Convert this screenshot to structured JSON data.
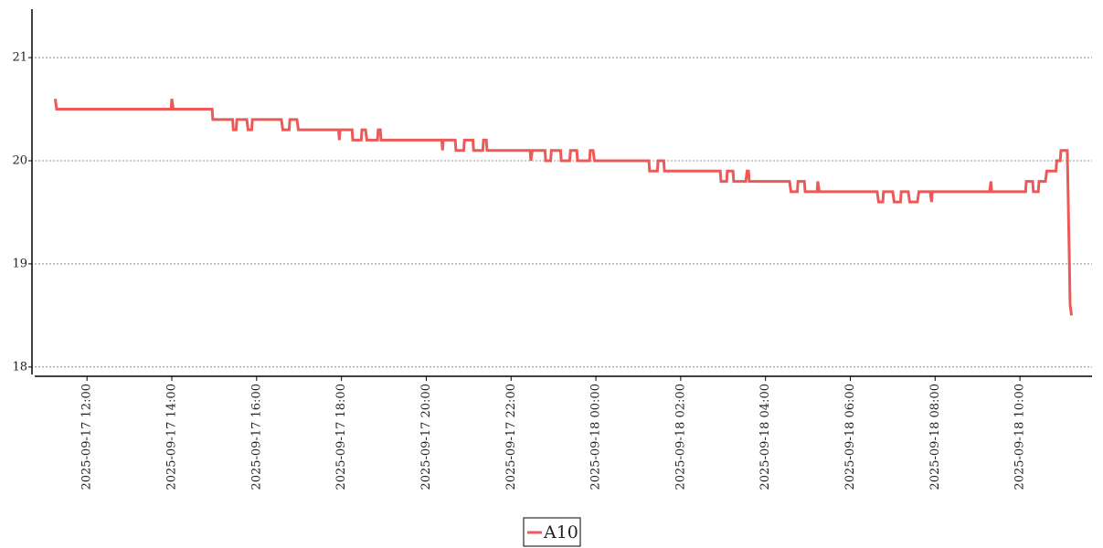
{
  "chart_data": {
    "type": "line",
    "x": [
      "2025-09-17 11:15",
      "2025-09-17 11:17",
      "2025-09-17 13:59",
      "2025-09-17 14:00",
      "2025-09-17 14:02",
      "2025-09-17 14:57",
      "2025-09-17 14:58",
      "2025-09-17 15:26",
      "2025-09-17 15:27",
      "2025-09-17 15:31",
      "2025-09-17 15:32",
      "2025-09-17 15:46",
      "2025-09-17 15:48",
      "2025-09-17 15:53",
      "2025-09-17 15:54",
      "2025-09-17 16:35",
      "2025-09-17 16:37",
      "2025-09-17 16:46",
      "2025-09-17 16:47",
      "2025-09-17 16:57",
      "2025-09-17 16:59",
      "2025-09-17 17:56",
      "2025-09-17 17:57",
      "2025-09-17 17:58",
      "2025-09-17 18:15",
      "2025-09-17 18:16",
      "2025-09-17 18:28",
      "2025-09-17 18:29",
      "2025-09-17 18:34",
      "2025-09-17 18:36",
      "2025-09-17 18:51",
      "2025-09-17 18:52",
      "2025-09-17 18:55",
      "2025-09-17 18:56",
      "2025-09-17 20:22",
      "2025-09-17 20:23",
      "2025-09-17 20:24",
      "2025-09-17 20:41",
      "2025-09-17 20:42",
      "2025-09-17 20:53",
      "2025-09-17 20:54",
      "2025-09-17 21:06",
      "2025-09-17 21:07",
      "2025-09-17 21:20",
      "2025-09-17 21:21",
      "2025-09-17 21:25",
      "2025-09-17 21:26",
      "2025-09-17 22:27",
      "2025-09-17 22:28",
      "2025-09-17 22:30",
      "2025-09-17 22:48",
      "2025-09-17 22:49",
      "2025-09-17 22:56",
      "2025-09-17 22:57",
      "2025-09-17 23:10",
      "2025-09-17 23:11",
      "2025-09-17 23:23",
      "2025-09-17 23:24",
      "2025-09-17 23:33",
      "2025-09-17 23:34",
      "2025-09-17 23:51",
      "2025-09-17 23:52",
      "2025-09-17 23:56",
      "2025-09-17 23:58",
      "2025-09-18 01:15",
      "2025-09-18 01:16",
      "2025-09-18 01:27",
      "2025-09-18 01:28",
      "2025-09-18 01:36",
      "2025-09-18 01:37",
      "2025-09-18 02:56",
      "2025-09-18 02:57",
      "2025-09-18 03:05",
      "2025-09-18 03:06",
      "2025-09-18 03:14",
      "2025-09-18 03:15",
      "2025-09-18 03:32",
      "2025-09-18 03:34",
      "2025-09-18 03:36",
      "2025-09-18 03:37",
      "2025-09-18 04:34",
      "2025-09-18 04:36",
      "2025-09-18 04:45",
      "2025-09-18 04:46",
      "2025-09-18 04:55",
      "2025-09-18 04:56",
      "2025-09-18 05:13",
      "2025-09-18 05:14",
      "2025-09-18 05:16",
      "2025-09-18 06:38",
      "2025-09-18 06:40",
      "2025-09-18 06:46",
      "2025-09-18 06:47",
      "2025-09-18 07:00",
      "2025-09-18 07:02",
      "2025-09-18 07:11",
      "2025-09-18 07:12",
      "2025-09-18 07:22",
      "2025-09-18 07:24",
      "2025-09-18 07:35",
      "2025-09-18 07:37",
      "2025-09-18 07:53",
      "2025-09-18 07:55",
      "2025-09-18 07:56",
      "2025-09-18 09:17",
      "2025-09-18 09:19",
      "2025-09-18 09:20",
      "2025-09-18 10:08",
      "2025-09-18 10:09",
      "2025-09-18 10:18",
      "2025-09-18 10:19",
      "2025-09-18 10:26",
      "2025-09-18 10:27",
      "2025-09-18 10:36",
      "2025-09-18 10:38",
      "2025-09-18 10:51",
      "2025-09-18 10:52",
      "2025-09-18 10:57",
      "2025-09-18 10:58",
      "2025-09-18 11:07",
      "2025-09-18 11:10",
      "2025-09-18 11:11",
      "2025-09-18 11:13"
    ],
    "series": [
      {
        "name": "A10",
        "color": "#eb5a57",
        "values": [
          20.6,
          20.5,
          20.5,
          20.6,
          20.5,
          20.5,
          20.4,
          20.4,
          20.3,
          20.3,
          20.4,
          20.4,
          20.3,
          20.3,
          20.4,
          20.4,
          20.3,
          20.3,
          20.4,
          20.4,
          20.3,
          20.3,
          20.2,
          20.3,
          20.3,
          20.2,
          20.2,
          20.3,
          20.3,
          20.2,
          20.2,
          20.3,
          20.3,
          20.2,
          20.2,
          20.1,
          20.2,
          20.2,
          20.1,
          20.1,
          20.2,
          20.2,
          20.1,
          20.1,
          20.2,
          20.2,
          20.1,
          20.1,
          20.0,
          20.1,
          20.1,
          20.0,
          20.0,
          20.1,
          20.1,
          20.0,
          20.0,
          20.1,
          20.1,
          20.0,
          20.0,
          20.1,
          20.1,
          20.0,
          20.0,
          19.9,
          19.9,
          20.0,
          20.0,
          19.9,
          19.9,
          19.8,
          19.8,
          19.9,
          19.9,
          19.8,
          19.8,
          19.9,
          19.9,
          19.8,
          19.8,
          19.7,
          19.7,
          19.8,
          19.8,
          19.7,
          19.7,
          19.8,
          19.7,
          19.7,
          19.6,
          19.6,
          19.7,
          19.7,
          19.6,
          19.6,
          19.7,
          19.7,
          19.6,
          19.6,
          19.7,
          19.7,
          19.6,
          19.7,
          19.7,
          19.8,
          19.7,
          19.7,
          19.8,
          19.8,
          19.7,
          19.7,
          19.8,
          19.8,
          19.9,
          19.9,
          20.0,
          20.0,
          20.1,
          20.1,
          19.0,
          18.6,
          18.5
        ]
      }
    ],
    "xlim": [
      "2025-09-17 10:46",
      "2025-09-18 11:42"
    ],
    "xticks": [
      "2025-09-17 12:00",
      "2025-09-17 14:00",
      "2025-09-17 16:00",
      "2025-09-17 18:00",
      "2025-09-17 20:00",
      "2025-09-17 22:00",
      "2025-09-18 00:00",
      "2025-09-18 02:00",
      "2025-09-18 04:00",
      "2025-09-18 06:00",
      "2025-09-18 08:00",
      "2025-09-18 10:00"
    ],
    "ylim": [
      17.91,
      21.47
    ],
    "yticks": [
      18,
      19,
      20,
      21
    ],
    "grid": true,
    "legend": "bottom"
  }
}
